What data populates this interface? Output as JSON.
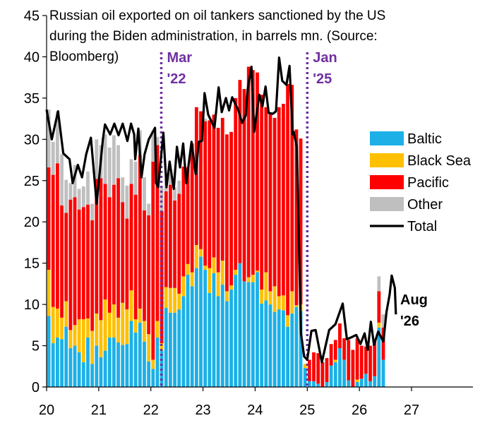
{
  "chart_data": {
    "type": "bar",
    "stacked": true,
    "title_lines": [
      "Russian oil exported on oil tankers sanctioned by the US",
      "during the Biden administration, in barrels mn. (Source:",
      "Bloomberg)"
    ],
    "xlabel": "",
    "ylabel": "",
    "x_start": 2020,
    "x_step_months": 1,
    "xlim": [
      20,
      27.7
    ],
    "ylim": [
      0,
      45
    ],
    "x_ticks": [
      20,
      21,
      22,
      23,
      24,
      25,
      26,
      27
    ],
    "x_tick_labels": [
      "20",
      "21",
      "22",
      "23",
      "24",
      "25",
      "26",
      "27"
    ],
    "y_ticks": [
      0,
      5,
      10,
      15,
      20,
      25,
      30,
      35,
      40,
      45
    ],
    "y_tick_labels": [
      "0",
      "5",
      "10",
      "15",
      "20",
      "25",
      "30",
      "35",
      "40",
      "45"
    ],
    "grid": false,
    "legend_position": "right",
    "colors": {
      "Baltic": "#1CB0E6",
      "Black Sea": "#FFC000",
      "Pacific": "#FF0000",
      "Other": "#BFBFBF",
      "Total": "#000000"
    },
    "series": [
      {
        "name": "Baltic",
        "values": [
          8.6,
          5.3,
          6.0,
          5.8,
          7.3,
          4.7,
          5.0,
          4.2,
          3.0,
          6.0,
          2.8,
          5.0,
          3.6,
          4.4,
          6.0,
          6.0,
          5.4,
          5.1,
          5.2,
          8.0,
          6.6,
          7.8,
          5.5,
          3.1,
          2.2,
          6.0,
          4.4,
          9.6,
          9.0,
          9.0,
          9.4,
          11.0,
          13.6,
          12.2,
          14.4,
          15.8,
          14.2,
          11.4,
          13.8,
          11.0,
          12.4,
          10.4,
          11.8,
          13.6,
          15.0,
          12.8,
          12.7,
          12.7,
          13.9,
          10.1,
          10.5,
          10.0,
          9.1,
          9.4,
          9.3,
          7.3,
          8.9,
          9.7,
          9.2,
          2.3,
          0.7,
          0.7,
          0.4,
          0.0,
          0.6,
          2.6,
          3.0,
          4.7,
          3.3,
          0.8,
          0.0,
          0.6,
          1.0,
          1.6,
          0.7,
          1.3,
          7.2,
          3.3
        ]
      },
      {
        "name": "Black Sea",
        "values": [
          5.6,
          4.4,
          3.5,
          2.6,
          3.1,
          2.2,
          2.5,
          4.0,
          5.2,
          2.3,
          4.0,
          3.9,
          4.5,
          6.2,
          3.0,
          4.0,
          3.0,
          5.1,
          4.2,
          3.7,
          1.6,
          1.7,
          2.5,
          3.3,
          1.1,
          2.0,
          0.9,
          2.5,
          3.0,
          3.0,
          1.9,
          2.4,
          1.3,
          1.7,
          2.8,
          0.9,
          0.5,
          3.0,
          1.9,
          2.9,
          2.9,
          1.2,
          0.5,
          0.6,
          0.0,
          0.0,
          0.6,
          0.9,
          0.2,
          1.7,
          3.4,
          1.6,
          3.1,
          1.6,
          1.8,
          1.4,
          2.7,
          0.2,
          0.8,
          0.5,
          0.0,
          0.0,
          0.0,
          0.0,
          0.0,
          0.0,
          0.3,
          0.0,
          0.0,
          0.0,
          0.0,
          0.3,
          0.0,
          0.0,
          0.0,
          0.0,
          0.6,
          0.0
        ]
      },
      {
        "name": "Pacific",
        "values": [
          12.4,
          16.0,
          17.6,
          13.6,
          10.7,
          15.8,
          15.5,
          13.3,
          13.6,
          13.8,
          13.4,
          16.3,
          17.2,
          14.0,
          14.0,
          14.5,
          16.9,
          12.2,
          11.0,
          12.9,
          15.1,
          18.6,
          13.4,
          14.4,
          24.0,
          21.3,
          16.0,
          11.6,
          12.5,
          10.6,
          12.1,
          13.3,
          11.7,
          15.6,
          16.7,
          16.7,
          17.5,
          17.9,
          17.3,
          17.5,
          17.3,
          19.0,
          18.6,
          20.8,
          22.2,
          23.3,
          25.5,
          24.8,
          24.0,
          23.6,
          20.0,
          21.6,
          20.4,
          22.9,
          23.2,
          28.0,
          25.0,
          21.3,
          20.1,
          0.0,
          2.6,
          3.5,
          3.7,
          3.0,
          2.9,
          2.6,
          2.4,
          3.0,
          2.6,
          4.9,
          4.5,
          5.0,
          4.0,
          3.3,
          4.3,
          4.5,
          3.8,
          3.9
        ]
      },
      {
        "name": "Other",
        "values": [
          7.0,
          4.0,
          6.3,
          6.2,
          4.0,
          2.0,
          3.9,
          2.5,
          2.5,
          4.0,
          2.0,
          4.8,
          4.0,
          6.0,
          6.0,
          6.0,
          4.0,
          3.0,
          4.0,
          3.0,
          4.0,
          3.0,
          4.0,
          1.4,
          3.7,
          1.0,
          3.0,
          1.5,
          1.5,
          1.6,
          1.6,
          0.0,
          0.0,
          0.0,
          0.0,
          0.0,
          0.3,
          0.0,
          0.0,
          0.0,
          0.0,
          0.0,
          0.0,
          0.0,
          0.0,
          0.0,
          0.0,
          0.0,
          0.0,
          0.0,
          0.0,
          0.0,
          0.0,
          0.0,
          0.0,
          0.0,
          0.0,
          0.0,
          0.0,
          0.0,
          0.0,
          0.0,
          0.0,
          0.0,
          0.0,
          0.0,
          0.0,
          0.0,
          0.0,
          0.0,
          0.0,
          0.0,
          0.0,
          0.0,
          0.0,
          0.0,
          1.8,
          1.6
        ]
      },
      {
        "name": "Total",
        "type": "line",
        "values": [
          33.6,
          29.7,
          33.4,
          28.2,
          27.6,
          24.7,
          26.9,
          24.0,
          24.3,
          26.1,
          22.2,
          30.0,
          29.3,
          30.6,
          29.0,
          30.5,
          29.3,
          25.4,
          24.4,
          27.6,
          27.3,
          31.1,
          25.4,
          22.2,
          31.0,
          30.3,
          24.3,
          25.2,
          26.0,
          24.2,
          25.0,
          26.7,
          26.6,
          29.5,
          33.9,
          33.4,
          32.5,
          32.3,
          33.0,
          31.4,
          32.6,
          30.6,
          30.9,
          35.0,
          37.2,
          36.1,
          38.8,
          38.4,
          38.1,
          35.4,
          33.9,
          33.2,
          32.6,
          33.9,
          34.3,
          36.7,
          36.6,
          31.2,
          29.6,
          2.8,
          3.3,
          4.2,
          4.1,
          3.0,
          3.5,
          5.2,
          5.7,
          7.7,
          5.9,
          5.7,
          4.5,
          5.9,
          5.0,
          4.9,
          5.0,
          5.8,
          13.4,
          8.8
        ]
      }
    ],
    "total_line": [
      [
        20.0,
        33.6
      ],
      [
        20.1,
        30.0
      ],
      [
        20.22,
        33.4
      ],
      [
        20.32,
        28.3
      ],
      [
        20.44,
        27.6
      ],
      [
        20.5,
        24.7
      ],
      [
        20.6,
        26.9
      ],
      [
        20.68,
        25.4
      ],
      [
        20.76,
        28.2
      ],
      [
        20.85,
        30.2
      ],
      [
        20.96,
        22.2
      ],
      [
        21.08,
        30.0
      ],
      [
        21.12,
        31.8
      ],
      [
        21.22,
        30.6
      ],
      [
        21.3,
        31.9
      ],
      [
        21.38,
        30.5
      ],
      [
        21.46,
        31.9
      ],
      [
        21.55,
        29.8
      ],
      [
        21.62,
        31.9
      ],
      [
        21.68,
        30.6
      ],
      [
        21.7,
        27.6
      ],
      [
        21.76,
        31.3
      ],
      [
        21.82,
        25.4
      ],
      [
        21.88,
        28.2
      ],
      [
        21.96,
        30.0
      ],
      [
        22.08,
        31.4
      ],
      [
        22.1,
        24.7
      ],
      [
        22.14,
        24.2
      ],
      [
        22.24,
        30.8
      ],
      [
        22.3,
        24.2
      ],
      [
        22.36,
        27.3
      ],
      [
        22.44,
        24.0
      ],
      [
        22.5,
        29.1
      ],
      [
        22.56,
        26.6
      ],
      [
        22.62,
        29.5
      ],
      [
        22.68,
        24.7
      ],
      [
        22.78,
        29.7
      ],
      [
        22.86,
        25.8
      ],
      [
        22.92,
        29.7
      ],
      [
        22.98,
        29.8
      ],
      [
        23.03,
        35.6
      ],
      [
        23.1,
        33.0
      ],
      [
        23.22,
        31.4
      ],
      [
        23.3,
        36.3
      ],
      [
        23.36,
        33.3
      ],
      [
        23.44,
        35.0
      ],
      [
        23.5,
        33.5
      ],
      [
        23.56,
        35.1
      ],
      [
        23.62,
        34.3
      ],
      [
        23.68,
        33.5
      ],
      [
        23.75,
        32.0
      ],
      [
        23.82,
        32.9
      ],
      [
        23.86,
        36.2
      ],
      [
        23.93,
        38.8
      ],
      [
        23.98,
        30.9
      ],
      [
        24.08,
        35.4
      ],
      [
        24.14,
        34.0
      ],
      [
        24.2,
        36.4
      ],
      [
        24.26,
        33.2
      ],
      [
        24.34,
        33.1
      ],
      [
        24.4,
        33.4
      ],
      [
        24.46,
        39.9
      ],
      [
        24.52,
        37.1
      ],
      [
        24.6,
        36.6
      ],
      [
        24.66,
        38.9
      ],
      [
        24.72,
        30.6
      ],
      [
        24.74,
        30.9
      ],
      [
        24.8,
        29.1
      ],
      [
        24.88,
        6.5
      ],
      [
        24.94,
        3.7
      ],
      [
        25.0,
        3.3
      ],
      [
        25.08,
        6.8
      ],
      [
        25.16,
        6.9
      ],
      [
        25.28,
        3.0
      ],
      [
        25.42,
        6.9
      ],
      [
        25.54,
        7.6
      ],
      [
        25.68,
        10.1
      ],
      [
        25.76,
        5.8
      ],
      [
        25.84,
        6.0
      ],
      [
        25.94,
        6.3
      ],
      [
        26.02,
        5.2
      ],
      [
        26.1,
        6.5
      ],
      [
        26.16,
        4.5
      ],
      [
        26.22,
        7.9
      ],
      [
        26.28,
        5.1
      ],
      [
        26.36,
        6.7
      ],
      [
        26.46,
        5.5
      ],
      [
        26.52,
        9.1
      ],
      [
        26.58,
        11.2
      ],
      [
        26.62,
        13.5
      ],
      [
        26.68,
        12.0
      ],
      [
        26.7,
        8.8
      ]
    ],
    "vertical_markers": [
      {
        "x": 22.2,
        "label_lines": [
          "Mar",
          "'22"
        ],
        "color": "#7030A0"
      },
      {
        "x": 25.0,
        "label_lines": [
          "Jan",
          "'25"
        ],
        "color": "#7030A0"
      }
    ],
    "annotations": [
      {
        "label_lines": [
          "Aug",
          "'26"
        ],
        "color": "#000000"
      }
    ],
    "legend": [
      "Baltic",
      "Black Sea",
      "Pacific",
      "Other",
      "Total"
    ]
  }
}
